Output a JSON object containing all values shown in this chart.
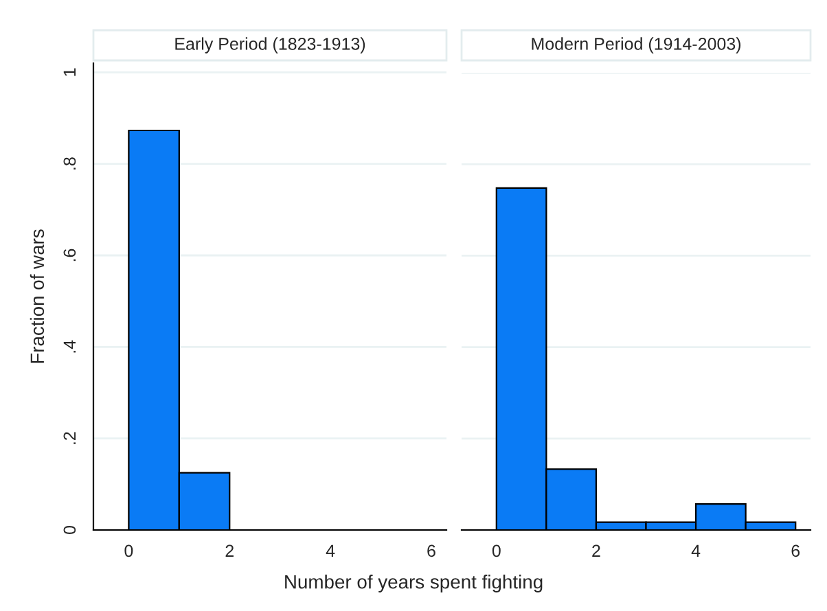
{
  "chart_data": [
    {
      "type": "histogram",
      "title": "Early Period (1823-1913)",
      "xlabel": "Number of years spent fighting",
      "ylabel": "Fraction of wars",
      "bins": [
        0,
        1,
        2
      ],
      "values": [
        0.873,
        0.125
      ],
      "color": "#0a7bf5",
      "xlim": [
        -0.7,
        6.3
      ],
      "xticks": [
        0,
        2,
        4,
        6
      ],
      "ylim": [
        0,
        1.02
      ],
      "yticks": [
        {
          "value": 0,
          "label": "0"
        },
        {
          "value": 0.2,
          "label": ".2"
        },
        {
          "value": 0.4,
          "label": ".4"
        },
        {
          "value": 0.6,
          "label": ".6"
        },
        {
          "value": 0.8,
          "label": ".8"
        },
        {
          "value": 1,
          "label": "1"
        }
      ],
      "grid": "y"
    },
    {
      "type": "histogram",
      "title": "Modern Period (1914-2003)",
      "bins": [
        0,
        1,
        2,
        3,
        4,
        5,
        6
      ],
      "values": [
        0.748,
        0.133,
        0.017,
        0.017,
        0.057,
        0.017
      ],
      "color": "#0a7bf5",
      "xlim": [
        -0.7,
        6.3
      ],
      "xticks": [
        0,
        2,
        4,
        6
      ],
      "ylim": [
        0,
        1
      ],
      "yticks": [
        0,
        0.2,
        0.4,
        0.6,
        0.8,
        1
      ],
      "grid": "y",
      "tick_labels": "x"
    }
  ]
}
